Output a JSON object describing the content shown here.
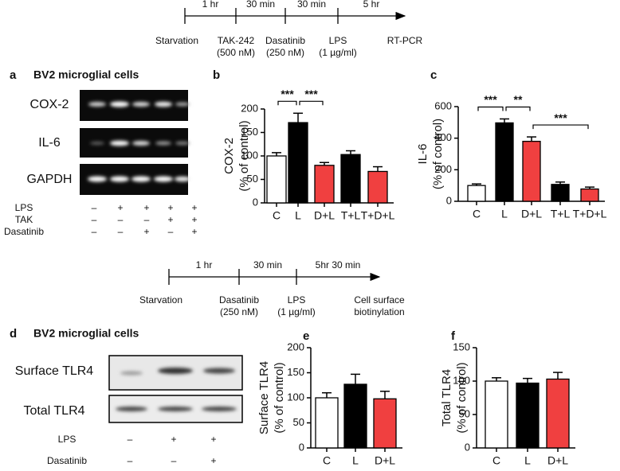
{
  "timelines": [
    {
      "above": [
        "1 hr",
        "30 min",
        "30 min",
        "5 hr"
      ],
      "below": [
        [
          "Starvation"
        ],
        [
          "TAK-242",
          "(500 nM)"
        ],
        [
          "Dasatinib",
          "(250 nM)"
        ],
        [
          "LPS",
          "(1 µg/ml)"
        ],
        [
          "RT-PCR"
        ]
      ]
    },
    {
      "above": [
        "1 hr",
        "30 min",
        "5hr 30 min"
      ],
      "below": [
        [
          "Starvation"
        ],
        [
          "Dasatinib",
          "(250 nM)"
        ],
        [
          "LPS",
          "(1 µg/ml)"
        ],
        [
          "Cell surface",
          "biotinylation"
        ]
      ]
    }
  ],
  "blots": [
    {
      "panel": "a",
      "title": "BV2 microglial cells",
      "rows": [
        "COX-2",
        "IL-6",
        "GAPDH"
      ],
      "conditions": [
        {
          "name": "LPS",
          "marks": [
            "–",
            "+",
            "+",
            "+",
            "+"
          ]
        },
        {
          "name": "TAK",
          "marks": [
            "–",
            "–",
            "–",
            "+",
            "+"
          ]
        },
        {
          "name": "Dasatinib",
          "marks": [
            "–",
            "–",
            "+",
            "–",
            "+"
          ]
        }
      ]
    },
    {
      "panel": "d",
      "title": "BV2 microglial cells",
      "rows": [
        "Surface TLR4",
        "Total TLR4"
      ],
      "conditions": [
        {
          "name": "LPS",
          "marks": [
            "–",
            "+",
            "+"
          ]
        },
        {
          "name": "Dasatinib",
          "marks": [
            "–",
            "–",
            "+"
          ]
        }
      ]
    }
  ],
  "chart_data": [
    {
      "type": "bar",
      "panel": "b",
      "y_label": [
        "COX-2",
        "(% of control)"
      ],
      "categories": [
        "C",
        "L",
        "D+L",
        "T+L",
        "T+D+L"
      ],
      "values": [
        100,
        171,
        80,
        103,
        67
      ],
      "errors": [
        7,
        20,
        6,
        8,
        10
      ],
      "colors": [
        "#ffffff",
        "#000000",
        "#f04040",
        "#000000",
        "#f04040"
      ],
      "ylim": [
        0,
        200
      ],
      "yticks": [
        0,
        50,
        100,
        150,
        200
      ],
      "annotations": [
        {
          "text": "***",
          "between": [
            "C",
            "L"
          ]
        },
        {
          "text": "***",
          "between": [
            "L",
            "D+L"
          ]
        }
      ]
    },
    {
      "type": "bar",
      "panel": "c",
      "y_label": [
        "IL-6",
        "(% of control)"
      ],
      "categories": [
        "C",
        "L",
        "D+L",
        "T+L",
        "T+D+L"
      ],
      "values": [
        100,
        497,
        380,
        107,
        78
      ],
      "errors": [
        10,
        25,
        28,
        15,
        12
      ],
      "colors": [
        "#ffffff",
        "#000000",
        "#f04040",
        "#000000",
        "#f04040"
      ],
      "ylim": [
        0,
        600
      ],
      "yticks": [
        0,
        200,
        400,
        600
      ],
      "annotations": [
        {
          "text": "***",
          "between": [
            "C",
            "L"
          ]
        },
        {
          "text": "**",
          "between": [
            "L",
            "D+L"
          ]
        },
        {
          "text": "***",
          "between": [
            "D+L",
            "T+D+L"
          ]
        }
      ]
    },
    {
      "type": "bar",
      "panel": "e",
      "y_label": [
        "Surface TLR4",
        "(% of control)"
      ],
      "categories": [
        "C",
        "L",
        "D+L"
      ],
      "values": [
        100,
        127,
        98
      ],
      "errors": [
        10,
        20,
        15
      ],
      "colors": [
        "#ffffff",
        "#000000",
        "#f04040"
      ],
      "ylim": [
        0,
        200
      ],
      "yticks": [
        0,
        50,
        100,
        150,
        200
      ]
    },
    {
      "type": "bar",
      "panel": "f",
      "y_label": [
        "Total TLR4",
        "(% of control)"
      ],
      "categories": [
        "C",
        "L",
        "D+L"
      ],
      "values": [
        100,
        97,
        103
      ],
      "errors": [
        5,
        7,
        10
      ],
      "colors": [
        "#ffffff",
        "#000000",
        "#f04040"
      ],
      "ylim": [
        0,
        150
      ],
      "yticks": [
        0,
        50,
        100,
        150
      ]
    }
  ]
}
